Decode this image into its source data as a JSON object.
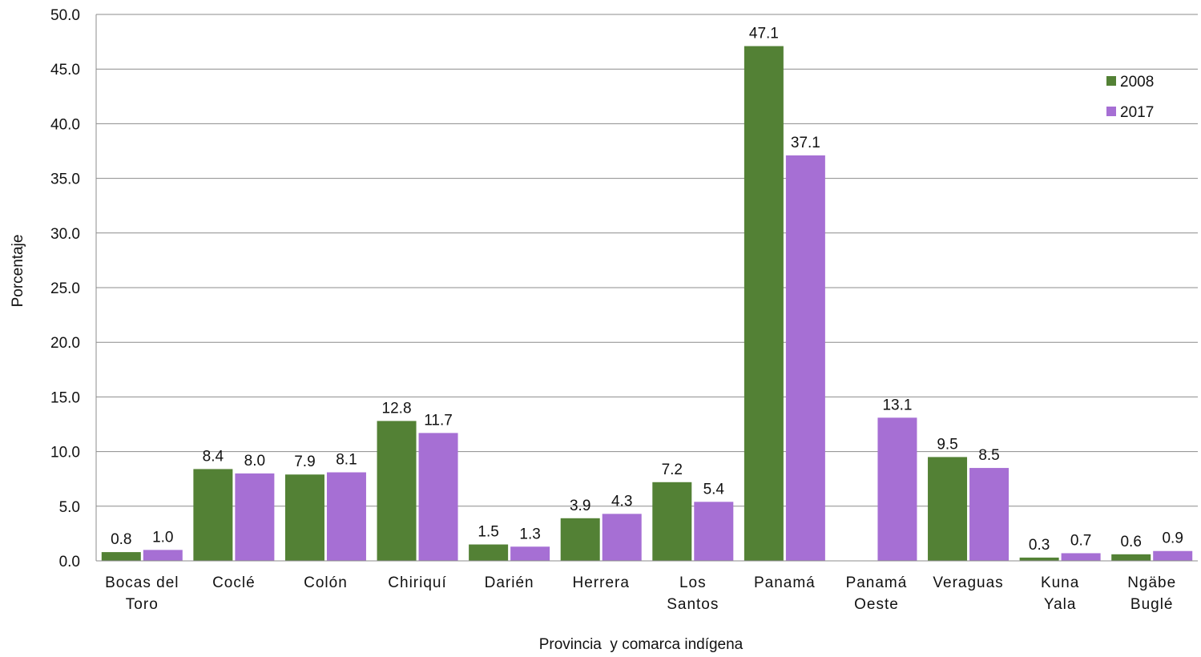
{
  "chart_data": {
    "type": "bar",
    "title": "",
    "xlabel": "Provincia  y comarca indígena",
    "ylabel": "Porcentaje",
    "ylim": [
      0,
      50
    ],
    "yticks": [
      "0.0",
      "5.0",
      "10.0",
      "15.0",
      "20.0",
      "25.0",
      "30.0",
      "35.0",
      "40.0",
      "45.0",
      "50.0"
    ],
    "grid": true,
    "legend_position": "top-right",
    "categories": [
      [
        "Bocas del",
        "Toro"
      ],
      [
        "Coclé"
      ],
      [
        "Colón"
      ],
      [
        "Chiriquí"
      ],
      [
        "Darién"
      ],
      [
        "Herrera"
      ],
      [
        "Los",
        "Santos"
      ],
      [
        "Panamá"
      ],
      [
        "Panamá",
        "Oeste"
      ],
      [
        "Veraguas"
      ],
      [
        "Kuna",
        "Yala"
      ],
      [
        "Ngäbe",
        "Buglé"
      ]
    ],
    "series": [
      {
        "name": "2008",
        "color": "#538135",
        "values": [
          0.8,
          8.4,
          7.9,
          12.8,
          1.5,
          3.9,
          7.2,
          47.1,
          null,
          9.5,
          0.3,
          0.6
        ],
        "labels": [
          "0.8",
          "8.4",
          "7.9",
          "12.8",
          "1.5",
          "3.9",
          "7.2",
          "47.1",
          "",
          "9.5",
          "0.3",
          "0.6"
        ]
      },
      {
        "name": "2017",
        "color": "#a66fd4",
        "values": [
          1.0,
          8.0,
          8.1,
          11.7,
          1.3,
          4.3,
          5.4,
          37.1,
          13.1,
          8.5,
          0.7,
          0.9
        ],
        "labels": [
          "1.0",
          "8.0",
          "8.1",
          "11.7",
          "1.3",
          "4.3",
          "5.4",
          "37.1",
          "13.1",
          "8.5",
          "0.7",
          "0.9"
        ]
      }
    ]
  }
}
